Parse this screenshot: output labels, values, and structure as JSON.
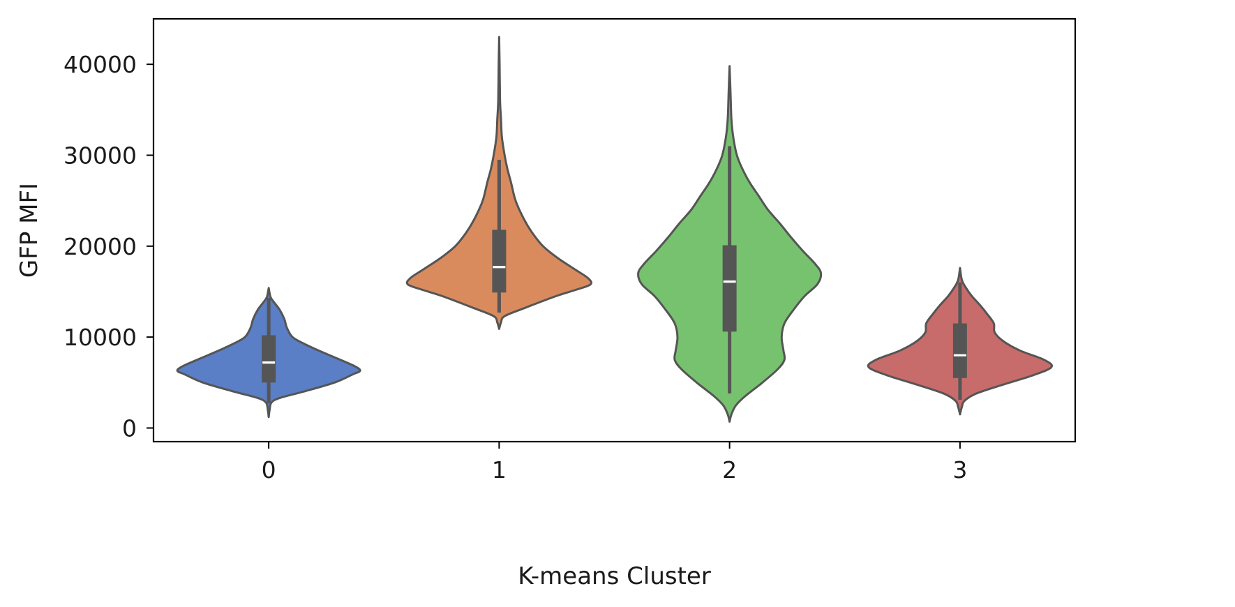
{
  "chart_data": {
    "type": "violin",
    "title": "",
    "xlabel": "K-means Cluster",
    "ylabel": "GFP MFI",
    "categories": [
      "0",
      "1",
      "2",
      "3"
    ],
    "xlim": [
      -0.5,
      3.5
    ],
    "ylim": [
      -1500,
      45000
    ],
    "yticks": [
      0,
      10000,
      20000,
      30000,
      40000
    ],
    "yticklabels": [
      "0",
      "10000",
      "20000",
      "30000",
      "40000"
    ],
    "grid": false,
    "legend": "none",
    "colors": {
      "0": "#5a7fc6",
      "1": "#d98b5e",
      "2": "#77c26f",
      "3": "#c86b6b",
      "outline": "#555555",
      "median": "#ffffff"
    },
    "violins": [
      {
        "category": "0",
        "color": "#5a7fc6",
        "min": 1200,
        "max": 15400,
        "q1": 5000,
        "median": 7200,
        "q3": 10200,
        "whisker_low": 2700,
        "whisker_high": 14300,
        "density_profile": [
          [
            1200,
            0.0
          ],
          [
            2000,
            0.01
          ],
          [
            2800,
            0.03
          ],
          [
            3300,
            0.12
          ],
          [
            4000,
            0.38
          ],
          [
            5000,
            0.72
          ],
          [
            5900,
            0.92
          ],
          [
            6300,
            1.0
          ],
          [
            6800,
            0.94
          ],
          [
            7600,
            0.76
          ],
          [
            8500,
            0.55
          ],
          [
            9300,
            0.38
          ],
          [
            10000,
            0.26
          ],
          [
            11000,
            0.2
          ],
          [
            12000,
            0.17
          ],
          [
            13000,
            0.12
          ],
          [
            13800,
            0.06
          ],
          [
            14400,
            0.02
          ],
          [
            15400,
            0.0
          ]
        ]
      },
      {
        "category": "1",
        "color": "#d98b5e",
        "min": 10900,
        "max": 43000,
        "q1": 14900,
        "median": 17700,
        "q3": 21800,
        "whisker_low": 12700,
        "whisker_high": 29500,
        "density_profile": [
          [
            10900,
            0.0
          ],
          [
            11600,
            0.02
          ],
          [
            12300,
            0.06
          ],
          [
            13200,
            0.28
          ],
          [
            14500,
            0.62
          ],
          [
            15200,
            0.84
          ],
          [
            15800,
            1.0
          ],
          [
            16500,
            0.97
          ],
          [
            17500,
            0.82
          ],
          [
            18700,
            0.64
          ],
          [
            20000,
            0.48
          ],
          [
            21500,
            0.36
          ],
          [
            23000,
            0.27
          ],
          [
            25000,
            0.18
          ],
          [
            27000,
            0.13
          ],
          [
            28500,
            0.09
          ],
          [
            30000,
            0.06
          ],
          [
            32000,
            0.03
          ],
          [
            34000,
            0.02
          ],
          [
            36000,
            0.01
          ],
          [
            40000,
            0.005
          ],
          [
            43000,
            0.0
          ]
        ]
      },
      {
        "category": "2",
        "color": "#77c26f",
        "min": 700,
        "max": 39800,
        "q1": 10600,
        "median": 16100,
        "q3": 20100,
        "whisker_low": 3800,
        "whisker_high": 31000,
        "density_profile": [
          [
            700,
            0.0
          ],
          [
            1500,
            0.02
          ],
          [
            2500,
            0.07
          ],
          [
            3500,
            0.17
          ],
          [
            5000,
            0.36
          ],
          [
            6500,
            0.53
          ],
          [
            7500,
            0.6
          ],
          [
            8500,
            0.59
          ],
          [
            10000,
            0.57
          ],
          [
            11500,
            0.6
          ],
          [
            13000,
            0.7
          ],
          [
            14500,
            0.82
          ],
          [
            15800,
            0.96
          ],
          [
            17000,
            1.0
          ],
          [
            18000,
            0.94
          ],
          [
            19500,
            0.8
          ],
          [
            21000,
            0.67
          ],
          [
            22500,
            0.55
          ],
          [
            24000,
            0.42
          ],
          [
            25500,
            0.32
          ],
          [
            27000,
            0.22
          ],
          [
            28500,
            0.14
          ],
          [
            30000,
            0.08
          ],
          [
            32000,
            0.04
          ],
          [
            34000,
            0.02
          ],
          [
            37000,
            0.01
          ],
          [
            39800,
            0.0
          ]
        ]
      },
      {
        "category": "3",
        "color": "#c86b6b",
        "min": 1500,
        "max": 17600,
        "q1": 5500,
        "median": 8000,
        "q3": 11500,
        "whisker_low": 3100,
        "whisker_high": 16000,
        "density_profile": [
          [
            1500,
            0.0
          ],
          [
            2300,
            0.02
          ],
          [
            3000,
            0.05
          ],
          [
            3800,
            0.18
          ],
          [
            4800,
            0.48
          ],
          [
            5800,
            0.8
          ],
          [
            6700,
            1.0
          ],
          [
            7500,
            0.92
          ],
          [
            8500,
            0.66
          ],
          [
            9500,
            0.48
          ],
          [
            10500,
            0.38
          ],
          [
            11500,
            0.37
          ],
          [
            12500,
            0.3
          ],
          [
            13500,
            0.22
          ],
          [
            14500,
            0.13
          ],
          [
            15500,
            0.06
          ],
          [
            16300,
            0.02
          ],
          [
            17600,
            0.0
          ]
        ]
      }
    ]
  }
}
